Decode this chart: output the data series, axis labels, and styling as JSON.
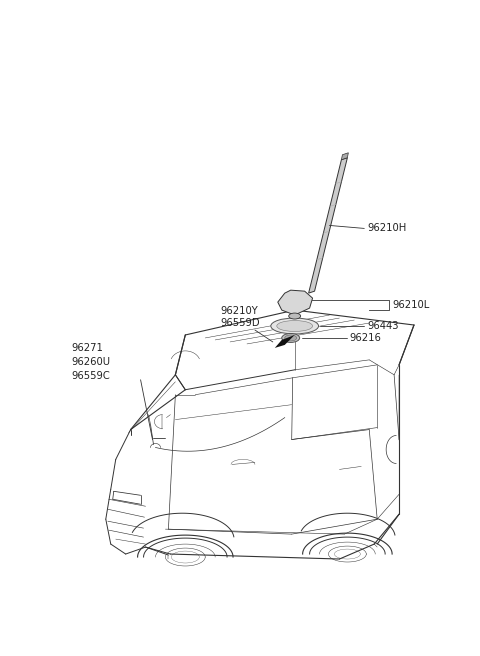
{
  "background_color": "#ffffff",
  "line_color": "#333333",
  "text_color": "#222222",
  "font_size": 7.2,
  "car_lw": 0.7,
  "car_color": "#333333",
  "parts_label_96210H": "96210H",
  "parts_label_96210L": "96210L",
  "parts_label_96443": "96443",
  "parts_label_96216": "96216",
  "parts_label_96210Y": "96210Y",
  "parts_label_96559D": "96559D",
  "parts_label_96271": "96271",
  "parts_label_96260U": "96260U",
  "parts_label_96559C": "96559C"
}
